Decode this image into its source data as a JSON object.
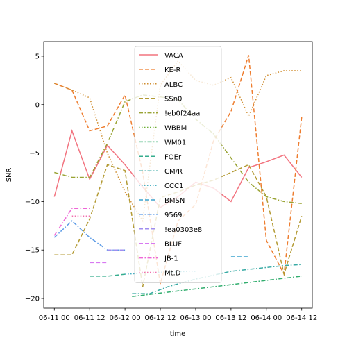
{
  "chart_data": {
    "type": "line",
    "xlabel": "time",
    "ylabel": "SNR",
    "x_ticks": [
      "06-11 00",
      "06-11 12",
      "06-12 00",
      "06-12 12",
      "06-13 00",
      "06-13 12",
      "06-14 00",
      "06-14 12"
    ],
    "y_ticks": [
      "−20",
      "−15",
      "−10",
      "−5",
      "0",
      "5"
    ],
    "xlim": [
      -0.15,
      3.65
    ],
    "ylim": [
      -21.0,
      6.5
    ],
    "grid": false,
    "legend_position": "top-center",
    "series": [
      {
        "name": "VACA",
        "color": "#f2737f",
        "dash": "solid",
        "x": [
          0.0,
          0.25,
          0.5,
          0.75,
          1.0,
          1.25,
          1.5,
          1.75,
          2.0,
          2.25,
          2.5,
          2.75,
          3.0,
          3.25,
          3.5
        ],
        "y": [
          -9.5,
          -2.7,
          -7.7,
          -4.2,
          -6.2,
          -8.5,
          -10.6,
          -9.5,
          -8.0,
          -8.6,
          -10.0,
          -6.5,
          -5.9,
          -5.2,
          -7.5
        ]
      },
      {
        "name": "KE-R",
        "color": "#ee7d2f",
        "dash": "dashed",
        "x": [
          0.0,
          0.25,
          0.5,
          0.75,
          1.0,
          1.25,
          1.5,
          1.75,
          2.0,
          2.25,
          2.5,
          2.75,
          3.0,
          3.25,
          3.5
        ],
        "y": [
          2.2,
          1.5,
          -2.7,
          -2.2,
          1.0,
          -7.0,
          -18.5,
          -12.0,
          -10.3,
          -3.8,
          -0.7,
          5.1,
          -14.0,
          -17.5,
          -1.3
        ]
      },
      {
        "name": "ALBC",
        "color": "#cf8d2f",
        "dash": "dotted",
        "x": [
          0.0,
          0.25,
          0.5,
          0.75,
          1.0,
          1.25,
          1.5,
          1.75,
          2.0,
          2.25,
          2.5,
          2.75,
          3.0,
          3.25,
          3.5
        ],
        "y": [
          2.2,
          1.5,
          0.7,
          -5.0,
          -9.0,
          -12.0,
          2.0,
          4.5,
          2.5,
          2.0,
          2.8,
          -1.2,
          3.0,
          3.5,
          3.5
        ]
      },
      {
        "name": "SSn0",
        "color": "#b39a33",
        "dash": "dashed",
        "x": [
          0.0,
          0.25,
          0.5,
          0.75,
          1.0,
          1.25,
          1.5,
          1.75,
          2.0,
          2.25,
          2.5,
          2.75,
          3.0,
          3.25,
          3.5
        ],
        "y": [
          -15.5,
          -15.5,
          -11.8,
          -6.2,
          -6.8,
          -18.8,
          -9.6,
          -9.0,
          -8.3,
          -7.8,
          -7.0,
          -6.2,
          -9.5,
          -17.5,
          -11.5
        ]
      },
      {
        "name": "!eb0f24aa",
        "color": "#99a333",
        "dash": "dashdot",
        "x": [
          0.0,
          0.25,
          0.5,
          0.75,
          1.0,
          1.25,
          1.5,
          1.75,
          2.0,
          2.25,
          2.5,
          2.75,
          3.0,
          3.25,
          3.5
        ],
        "y": [
          -7.0,
          -7.5,
          -7.5,
          -4.0,
          0.3,
          1.0,
          0.8,
          0.5,
          -1.5,
          -3.0,
          -5.5,
          -8.0,
          -9.5,
          -10.0,
          -10.2
        ]
      },
      {
        "name": "WBBM",
        "color": "#6daf35",
        "dash": "dotted",
        "x": [],
        "y": []
      },
      {
        "name": "WM01",
        "color": "#33ae6f",
        "dash": "dashdot",
        "x": [
          1.1,
          3.5
        ],
        "y": [
          -19.8,
          -17.7
        ]
      },
      {
        "name": "FOEr",
        "color": "#36ad8e",
        "dash": "dashed",
        "x": [
          0.5,
          0.75,
          1.0
        ],
        "y": [
          -17.7,
          -17.7,
          -17.5
        ]
      },
      {
        "name": "CM/R",
        "color": "#37aaa4",
        "dash": "dashdot",
        "x": [
          1.1,
          1.35,
          1.6,
          2.0,
          2.5,
          3.0,
          3.25,
          3.5
        ],
        "y": [
          -19.5,
          -19.5,
          -18.8,
          -18.0,
          -17.2,
          -16.8,
          -16.6,
          -16.5
        ]
      },
      {
        "name": "CCC1",
        "color": "#38a8bd",
        "dash": "dotted",
        "x": [
          1.0,
          1.5,
          2.0
        ],
        "y": [
          -17.5,
          -17.3,
          -17.2
        ]
      },
      {
        "name": "BMSN",
        "color": "#3ca3cd",
        "dash": "dashed",
        "x": [
          2.5,
          2.75
        ],
        "y": [
          -15.7,
          -15.7
        ]
      },
      {
        "name": "9569",
        "color": "#5c9be6",
        "dash": "dashdot",
        "x": [
          0.0,
          0.25,
          0.5,
          0.75,
          1.0
        ],
        "y": [
          -13.7,
          -12.0,
          -13.7,
          -15.0,
          -15.0
        ]
      },
      {
        "name": "!ea0303e8",
        "color": "#a08ef0",
        "dash": "dashed",
        "x": [
          0.75,
          1.0
        ],
        "y": [
          -15.0,
          -15.0
        ]
      },
      {
        "name": "BLUF",
        "color": "#d879f1",
        "dash": "dashed",
        "x": [
          0.5,
          0.75
        ],
        "y": [
          -16.3,
          -16.3
        ]
      },
      {
        "name": "JB-1",
        "color": "#ee66d6",
        "dash": "dashdot",
        "x": [
          0.0,
          0.25,
          0.5
        ],
        "y": [
          -13.5,
          -10.7,
          -10.7
        ]
      },
      {
        "name": "Mt.D",
        "color": "#f26fae",
        "dash": "dotted",
        "x": [
          0.25,
          0.5
        ],
        "y": [
          -11.5,
          -11.5
        ]
      }
    ]
  }
}
